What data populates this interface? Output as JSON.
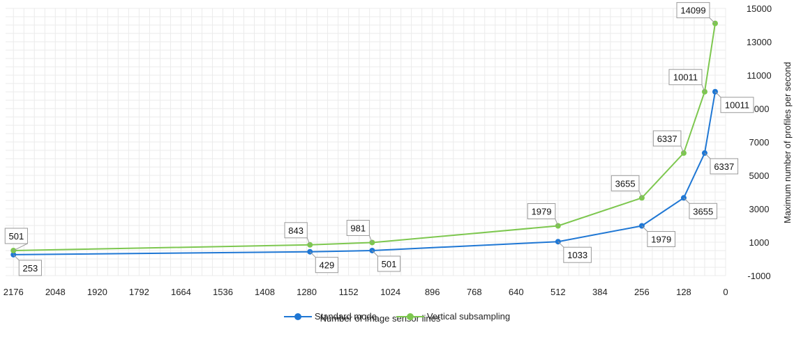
{
  "chart_data": {
    "type": "line",
    "xlabel": "Number of image sensor lines",
    "ylabel": "Maximum number of profiles per second",
    "x_reversed": true,
    "xlim": [
      2200,
      0
    ],
    "ylim": [
      -1000,
      15000
    ],
    "x_ticks": [
      2176,
      2048,
      1920,
      1792,
      1664,
      1536,
      1408,
      1280,
      1152,
      1024,
      896,
      768,
      640,
      512,
      384,
      256,
      128,
      0
    ],
    "y_ticks": [
      -1000,
      1000,
      3000,
      5000,
      7000,
      9000,
      11000,
      13000,
      15000
    ],
    "grid": true,
    "legend_position": "bottom",
    "series": [
      {
        "name": "Standard mode",
        "color": "#1f77d4",
        "x": [
          2176,
          1270,
          1080,
          512,
          256,
          128,
          64,
          32
        ],
        "values": [
          253,
          429,
          501,
          1033,
          1979,
          3655,
          6337,
          10011
        ],
        "labels": [
          "253",
          "429",
          "501",
          "1033",
          "1979",
          "3655",
          "6337",
          "10011"
        ]
      },
      {
        "name": "Vertical subsampling",
        "color": "#7dc74f",
        "x": [
          2176,
          1270,
          1080,
          512,
          256,
          128,
          64,
          32
        ],
        "values": [
          501,
          843,
          981,
          1979,
          3655,
          6337,
          10011,
          14099
        ],
        "labels": [
          "501",
          "843",
          "981",
          "1979",
          "3655",
          "6337",
          "10011",
          "14099"
        ]
      }
    ]
  }
}
